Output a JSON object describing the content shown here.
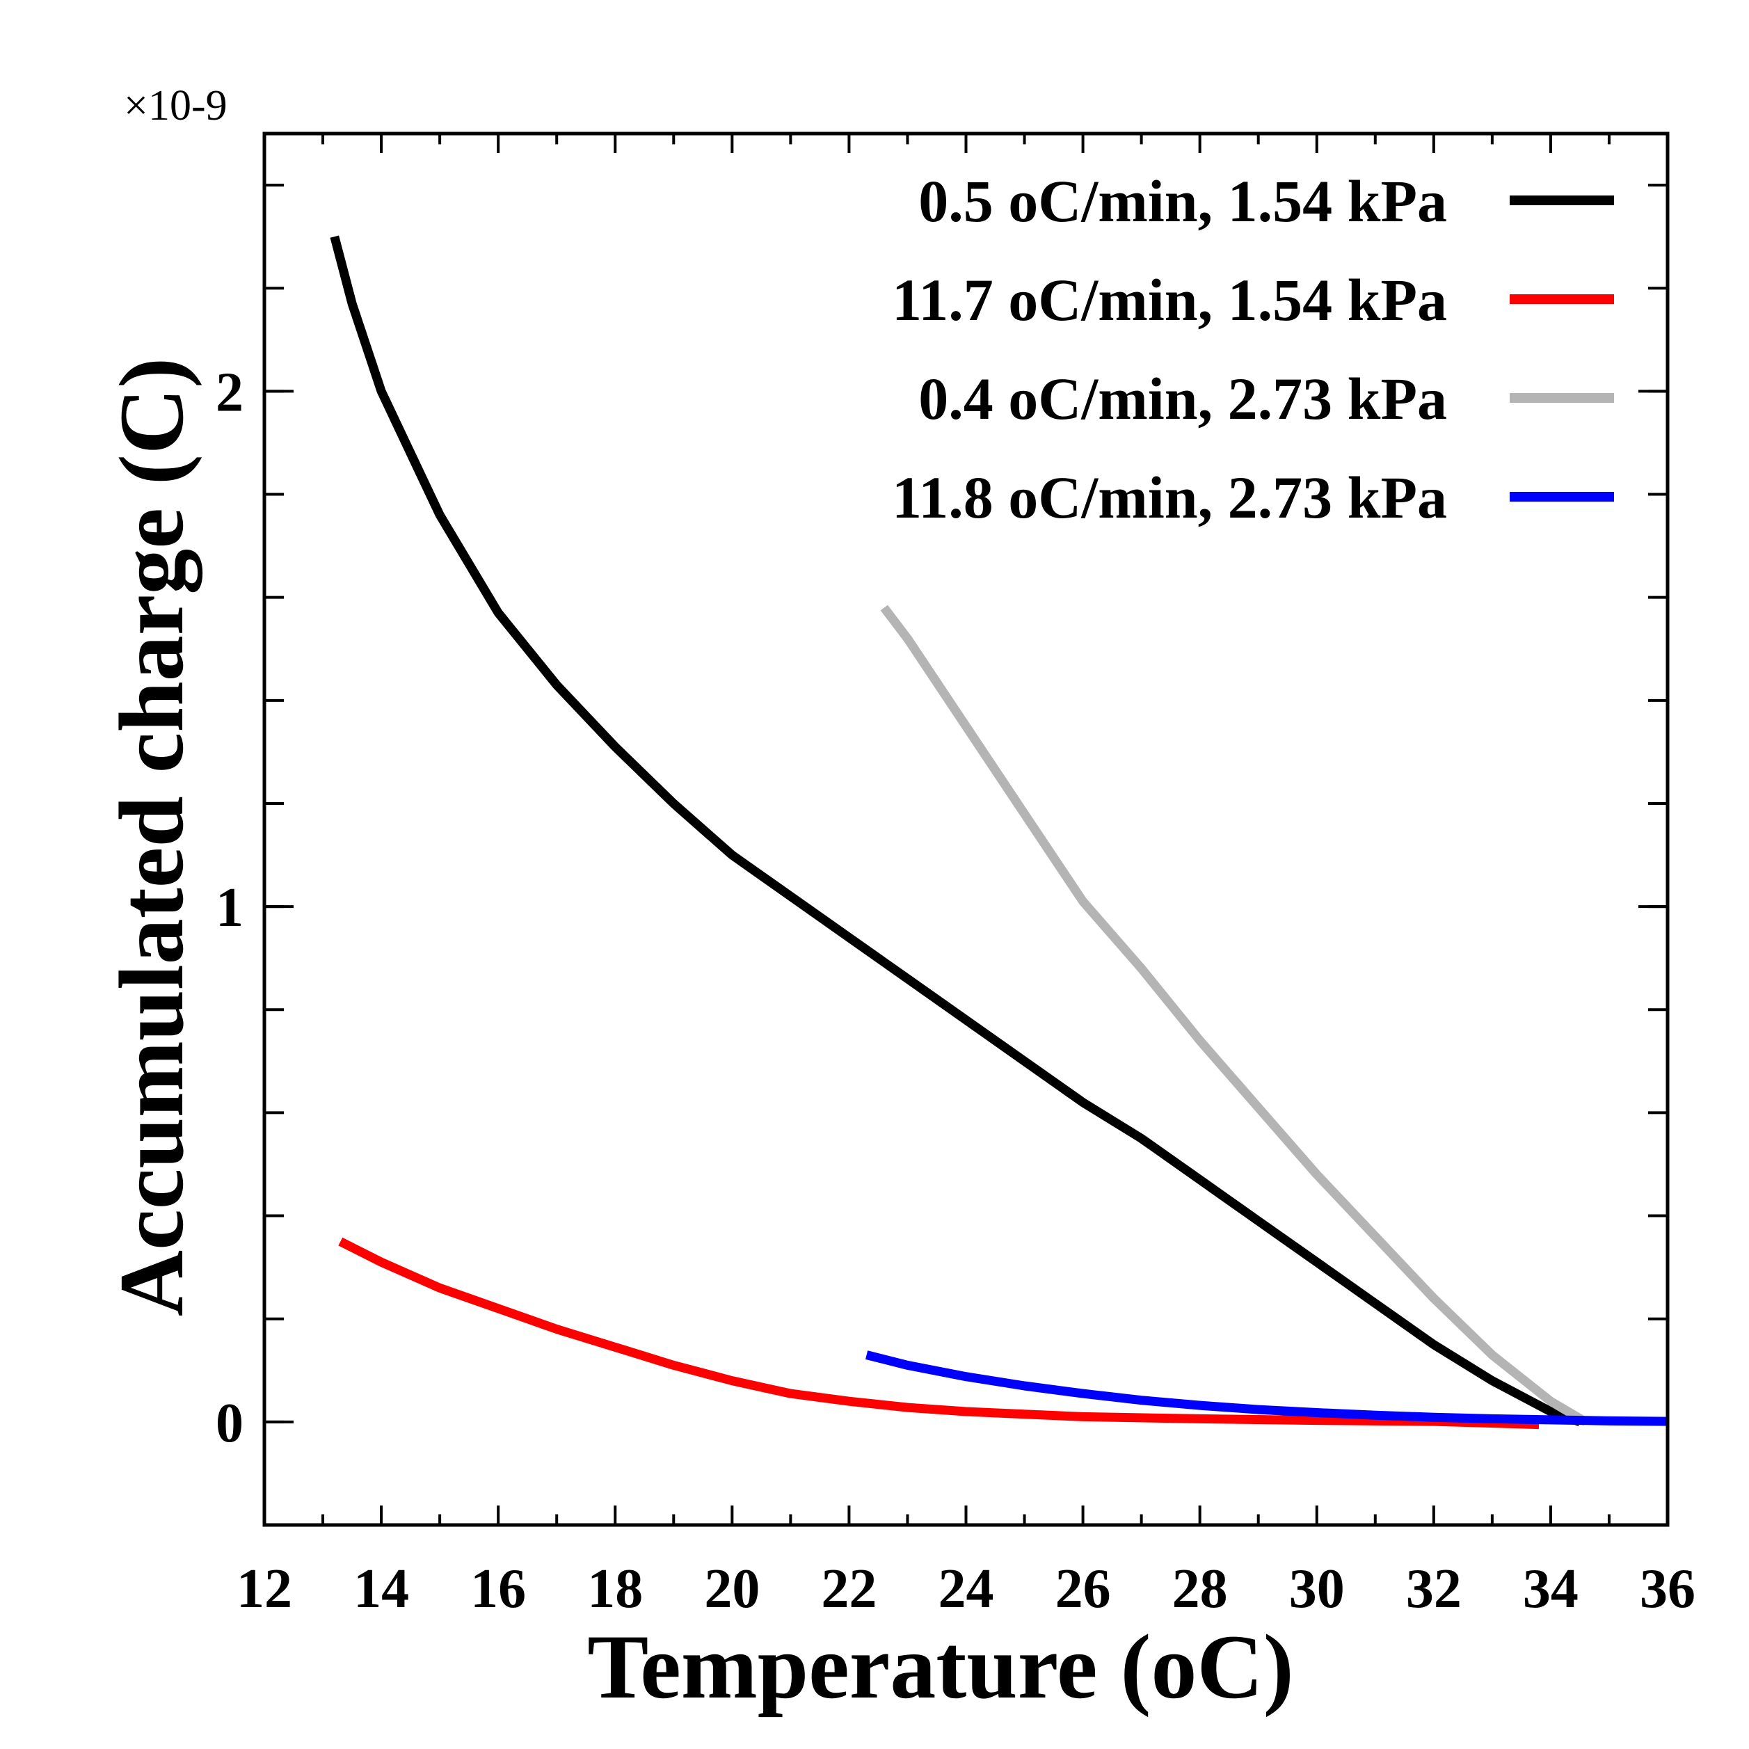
{
  "chart_data": {
    "type": "line",
    "title": "",
    "xlabel": "Temperature (oC)",
    "ylabel": "Accumulated charge (C)",
    "y_multiplier": "×10-9",
    "xlim": [
      12,
      36
    ],
    "ylim": [
      -0.2,
      2.5
    ],
    "x_ticks": [
      12,
      14,
      16,
      18,
      20,
      22,
      24,
      26,
      28,
      30,
      32,
      34,
      36
    ],
    "y_ticks": [
      0,
      1,
      2
    ],
    "y_minor_step": 0.2,
    "legend_position": "top-right",
    "series": [
      {
        "name": "0.5 oC/min, 1.54 kPa",
        "color": "#000000",
        "x": [
          13.2,
          13.5,
          14,
          14.5,
          15,
          16,
          17,
          18,
          19,
          20,
          21,
          22,
          23,
          24,
          25,
          26,
          27,
          28,
          29,
          30,
          31,
          32,
          33,
          34,
          34.5
        ],
        "y": [
          2.3,
          2.17,
          2.0,
          1.88,
          1.76,
          1.57,
          1.43,
          1.31,
          1.2,
          1.1,
          1.02,
          0.94,
          0.86,
          0.78,
          0.7,
          0.62,
          0.55,
          0.47,
          0.39,
          0.31,
          0.23,
          0.15,
          0.08,
          0.02,
          0.0
        ]
      },
      {
        "name": "11.7 oC/min, 1.54 kPa",
        "color": "#ff0000",
        "x": [
          13.3,
          14,
          15,
          16,
          17,
          18,
          19,
          20,
          21,
          22,
          23,
          24,
          25,
          26,
          28,
          30,
          32,
          33.8
        ],
        "y": [
          0.35,
          0.31,
          0.26,
          0.22,
          0.18,
          0.145,
          0.11,
          0.08,
          0.055,
          0.04,
          0.028,
          0.02,
          0.015,
          0.01,
          0.006,
          0.003,
          0.001,
          -0.005
        ]
      },
      {
        "name": "0.4 oC/min, 2.73 kPa",
        "color": "#b4b4b4",
        "x": [
          22.6,
          23,
          24,
          25,
          26,
          27,
          28,
          29,
          30,
          31,
          32,
          33,
          34,
          34.6
        ],
        "y": [
          1.58,
          1.52,
          1.35,
          1.18,
          1.01,
          0.88,
          0.74,
          0.61,
          0.48,
          0.36,
          0.24,
          0.13,
          0.04,
          0.0
        ]
      },
      {
        "name": "11.8 oC/min, 2.73 kPa",
        "color": "#0000ff",
        "x": [
          22.3,
          23,
          24,
          25,
          26,
          27,
          28,
          29,
          30,
          31,
          32,
          33,
          34,
          35,
          36
        ],
        "y": [
          0.13,
          0.11,
          0.088,
          0.07,
          0.055,
          0.042,
          0.032,
          0.024,
          0.018,
          0.013,
          0.009,
          0.006,
          0.004,
          0.002,
          0.001
        ]
      }
    ]
  }
}
